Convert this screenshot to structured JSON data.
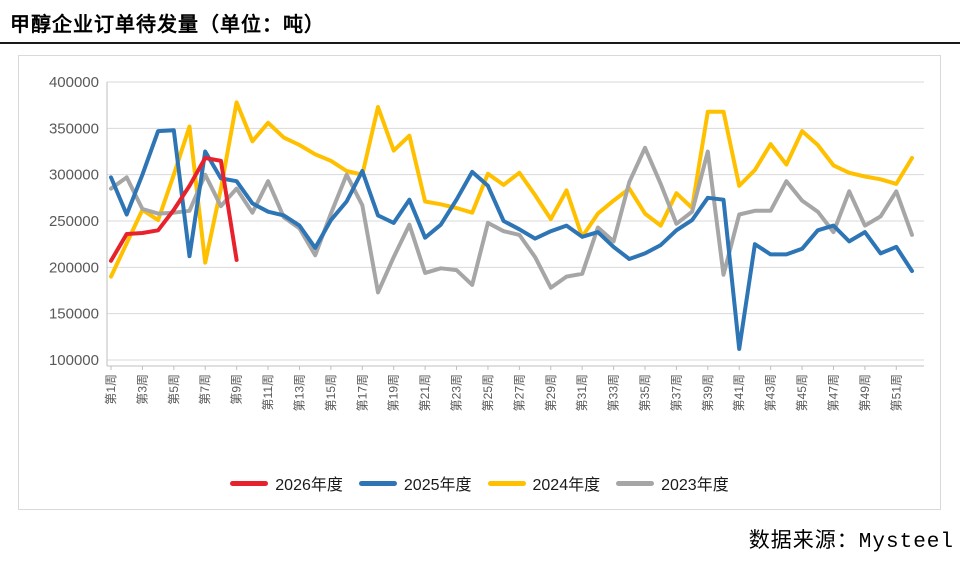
{
  "title": "甲醇企业订单待发量（单位：吨）",
  "source": "数据来源：Mysteel",
  "chart_data": {
    "type": "line",
    "xlabel": "",
    "ylabel": "",
    "weeks": 52,
    "x_tick_labels": [
      "第1周",
      "第3周",
      "第5周",
      "第7周",
      "第9周",
      "第11周",
      "第13周",
      "第15周",
      "第17周",
      "第19周",
      "第21周",
      "第23周",
      "第25周",
      "第27周",
      "第29周",
      "第31周",
      "第33周",
      "第35周",
      "第37周",
      "第39周",
      "第41周",
      "第43周",
      "第45周",
      "第47周",
      "第49周",
      "第51周"
    ],
    "y_axis": {
      "min": 100000,
      "max": 400000,
      "step": 50000,
      "tick_labels": [
        "400000",
        "350000",
        "300000",
        "250000",
        "200000",
        "150000",
        "100000"
      ]
    },
    "grid": true,
    "legend_position": "bottom",
    "colors": {
      "grid": "#d9d9d9",
      "axis": "#bfbfbf",
      "tick_text": "#595959"
    },
    "series": [
      {
        "name": "2026年度",
        "color": "#e8222d",
        "values": [
          207000,
          236000,
          237000,
          240000,
          262000,
          288000,
          318000,
          315000,
          208000
        ]
      },
      {
        "name": "2025年度",
        "color": "#2e75b6",
        "values": [
          297000,
          257000,
          300000,
          347000,
          348000,
          212000,
          325000,
          296000,
          293000,
          269000,
          260000,
          256000,
          245000,
          221000,
          251000,
          271000,
          304000,
          256000,
          248000,
          273000,
          232000,
          246000,
          273000,
          303000,
          288000,
          250000,
          241000,
          231000,
          239000,
          245000,
          233000,
          238000,
          222000,
          209000,
          215000,
          224000,
          240000,
          251000,
          275000,
          273000,
          112000,
          225000,
          214000,
          214000,
          220000,
          240000,
          245000,
          228000,
          238000,
          215000,
          222000,
          196000
        ]
      },
      {
        "name": "2024年度",
        "color": "#ffc000",
        "values": [
          190000,
          226000,
          262000,
          251000,
          300000,
          352000,
          205000,
          285000,
          378000,
          336000,
          356000,
          340000,
          332000,
          322000,
          315000,
          304000,
          300000,
          373000,
          326000,
          342000,
          271000,
          268000,
          264000,
          259000,
          301000,
          289000,
          302000,
          278000,
          252000,
          283000,
          233000,
          258000,
          272000,
          285000,
          258000,
          245000,
          280000,
          264000,
          368000,
          368000,
          288000,
          305000,
          333000,
          311000,
          347000,
          332000,
          310000,
          302000,
          298000,
          295000,
          290000,
          318000
        ]
      },
      {
        "name": "2023年度",
        "color": "#a6a6a6",
        "values": [
          285000,
          297000,
          263000,
          258000,
          259000,
          261000,
          300000,
          266000,
          285000,
          259000,
          293000,
          254000,
          242000,
          213000,
          258000,
          300000,
          267000,
          173000,
          211000,
          246000,
          194000,
          199000,
          197000,
          181000,
          248000,
          239000,
          235000,
          211000,
          178000,
          190000,
          193000,
          243000,
          228000,
          292000,
          329000,
          290000,
          247000,
          260000,
          325000,
          192000,
          257000,
          261000,
          261000,
          293000,
          272000,
          260000,
          238000,
          282000,
          245000,
          255000,
          282000,
          235000
        ]
      }
    ]
  }
}
